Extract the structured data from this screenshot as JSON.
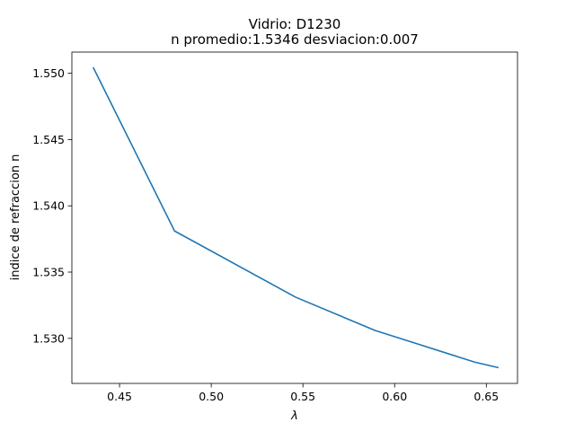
{
  "chart_data": {
    "type": "line",
    "title": "Vidrio: D1230",
    "subtitle": "n promedio:1.5346 desviacion:0.007",
    "xlabel": "λ",
    "ylabel": "indice de refraccion n",
    "xlim": [
      0.424,
      0.667
    ],
    "ylim": [
      1.5266,
      1.5516
    ],
    "grid": false,
    "x_ticks": [
      0.45,
      0.5,
      0.55,
      0.6,
      0.65
    ],
    "x_tick_labels": [
      "0.45",
      "0.50",
      "0.55",
      "0.60",
      "0.65"
    ],
    "y_ticks": [
      1.53,
      1.535,
      1.54,
      1.545,
      1.55
    ],
    "y_tick_labels": [
      "1.530",
      "1.535",
      "1.540",
      "1.545",
      "1.550"
    ],
    "series": [
      {
        "color": "#1f77b4",
        "x": [
          0.4358,
          0.48,
          0.5461,
          0.5893,
          0.6438,
          0.6563
        ],
        "y": [
          1.5504,
          1.5381,
          1.5331,
          1.5306,
          1.5282,
          1.5278
        ]
      }
    ]
  }
}
